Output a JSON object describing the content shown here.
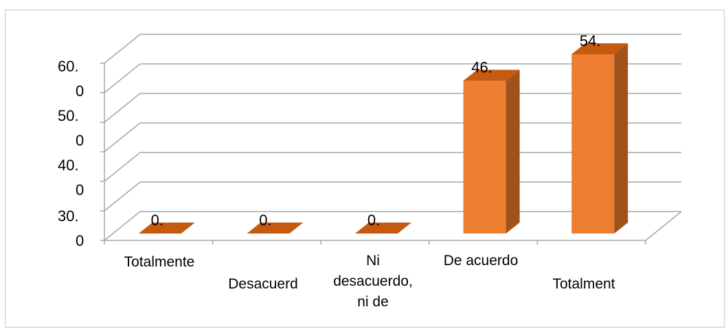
{
  "chart_data": {
    "type": "bar",
    "style": "3d-column",
    "categories": [
      [
        "Totalmente"
      ],
      [
        "Desacuerd"
      ],
      [
        "Ni",
        "desacuerdo,",
        "ni de"
      ],
      [
        "De acuerdo"
      ],
      [
        "Totalment"
      ]
    ],
    "values": [
      0,
      0,
      0,
      46,
      54
    ],
    "data_labels": [
      "0.",
      "0.",
      "0.",
      "46.",
      "54."
    ],
    "y_tick_labels": [
      [
        "30.",
        "0"
      ],
      [
        "40.",
        "0"
      ],
      [
        "50.",
        "0"
      ],
      [
        "60.",
        "0"
      ]
    ],
    "grid": true,
    "legend": "none",
    "colors": {
      "front": "#ED7D31",
      "side": "#A0521B",
      "top": "#C55A11",
      "grid": "#a6a6a6",
      "frame": "#c9c9c9"
    }
  }
}
